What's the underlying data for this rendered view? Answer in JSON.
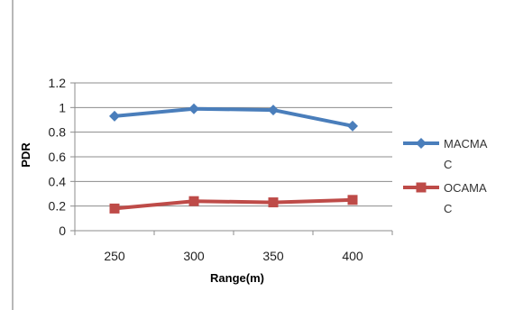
{
  "chart_data": {
    "type": "line",
    "x": [
      "250",
      "300",
      "350",
      "400"
    ],
    "series": [
      {
        "name": "MACMAC",
        "name_lines": [
          "MACMA",
          "C"
        ],
        "color": "#4a7ebb",
        "marker": "diamond",
        "values": [
          0.93,
          0.99,
          0.98,
          0.85
        ]
      },
      {
        "name": "OCAMAC",
        "name_lines": [
          "OCAMA",
          "C"
        ],
        "color": "#be4b48",
        "marker": "square",
        "values": [
          0.18,
          0.24,
          0.23,
          0.25
        ]
      }
    ],
    "xlabel": "Range(m)",
    "ylabel": "PDR",
    "ylim": [
      0,
      1.2
    ],
    "yticks": [
      "0",
      "0.2",
      "0.4",
      "0.6",
      "0.8",
      "1",
      "1.2"
    ],
    "grid": true,
    "legend_position": "right"
  }
}
